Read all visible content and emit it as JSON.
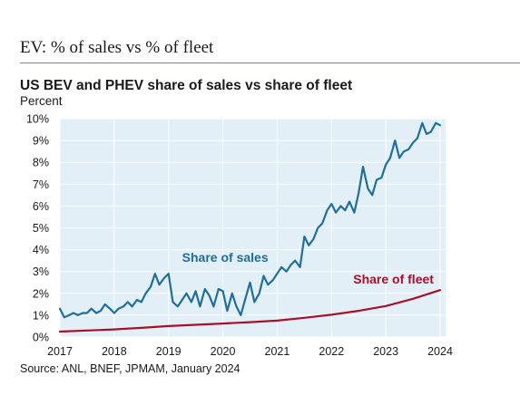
{
  "header": {
    "title": "EV: % of sales vs % of fleet"
  },
  "chart_data": {
    "type": "line",
    "title": "US BEV and PHEV share of sales vs share of fleet",
    "ylabel": "Percent",
    "source": "Source: ANL, BNEF, JPMAM, January 2024",
    "xlim": [
      2017,
      2024.1
    ],
    "ylim": [
      0,
      10
    ],
    "xticks": [
      "2017",
      "2018",
      "2019",
      "2020",
      "2021",
      "2022",
      "2023",
      "2024"
    ],
    "yticks": [
      "0%",
      "1%",
      "2%",
      "3%",
      "4%",
      "5%",
      "6%",
      "7%",
      "8%",
      "9%",
      "10%"
    ],
    "grid": true,
    "legend": "inline annotations",
    "colors": {
      "sales": "#1f6e9c",
      "fleet": "#a8102a",
      "plot_bg": "#e3eff6"
    },
    "series": [
      {
        "name": "Share of sales",
        "x": [
          2017.0,
          2017.08,
          2017.17,
          2017.25,
          2017.33,
          2017.42,
          2017.5,
          2017.58,
          2017.67,
          2017.75,
          2017.83,
          2017.92,
          2018.0,
          2018.08,
          2018.17,
          2018.25,
          2018.33,
          2018.42,
          2018.5,
          2018.58,
          2018.67,
          2018.75,
          2018.83,
          2018.92,
          2019.0,
          2019.08,
          2019.17,
          2019.25,
          2019.33,
          2019.42,
          2019.5,
          2019.58,
          2019.67,
          2019.75,
          2019.83,
          2019.92,
          2020.0,
          2020.08,
          2020.17,
          2020.25,
          2020.33,
          2020.42,
          2020.5,
          2020.58,
          2020.67,
          2020.75,
          2020.83,
          2020.92,
          2021.0,
          2021.08,
          2021.17,
          2021.25,
          2021.33,
          2021.42,
          2021.5,
          2021.58,
          2021.67,
          2021.75,
          2021.83,
          2021.92,
          2022.0,
          2022.08,
          2022.17,
          2022.25,
          2022.33,
          2022.42,
          2022.5,
          2022.58,
          2022.67,
          2022.75,
          2022.83,
          2022.92,
          2023.0,
          2023.08,
          2023.17,
          2023.25,
          2023.33,
          2023.42,
          2023.5,
          2023.58,
          2023.67,
          2023.75,
          2023.83,
          2023.92,
          2024.0
        ],
        "values": [
          1.3,
          0.9,
          1.0,
          1.1,
          1.0,
          1.1,
          1.1,
          1.3,
          1.1,
          1.2,
          1.5,
          1.3,
          1.1,
          1.3,
          1.4,
          1.6,
          1.4,
          1.7,
          1.6,
          2.0,
          2.3,
          2.9,
          2.4,
          2.7,
          2.9,
          1.6,
          1.4,
          1.7,
          2.0,
          1.6,
          2.1,
          1.4,
          2.2,
          1.9,
          1.4,
          2.2,
          2.1,
          1.2,
          2.0,
          1.4,
          1.0,
          1.8,
          2.5,
          1.6,
          2.0,
          2.8,
          2.4,
          2.6,
          2.9,
          3.2,
          3.0,
          3.3,
          3.5,
          3.2,
          4.6,
          4.2,
          4.5,
          5.0,
          5.2,
          5.8,
          6.1,
          5.7,
          6.0,
          5.8,
          6.2,
          5.7,
          6.6,
          7.8,
          6.8,
          6.5,
          7.2,
          7.3,
          7.9,
          8.2,
          9.0,
          8.2,
          8.5,
          8.6,
          8.9,
          9.1,
          9.8,
          9.3,
          9.4,
          9.8,
          9.7
        ]
      },
      {
        "name": "Share of fleet",
        "x": [
          2017,
          2017.5,
          2018,
          2018.5,
          2019,
          2019.5,
          2020,
          2020.5,
          2021,
          2021.5,
          2022,
          2022.5,
          2023,
          2023.5,
          2024
        ],
        "values": [
          0.25,
          0.3,
          0.35,
          0.42,
          0.5,
          0.56,
          0.62,
          0.68,
          0.75,
          0.88,
          1.02,
          1.2,
          1.42,
          1.75,
          2.15
        ]
      }
    ],
    "annotations": [
      {
        "text": "Share of sales",
        "series": 0,
        "x": 2019.25,
        "y": 3.45
      },
      {
        "text": "Share of fleet",
        "series": 1,
        "x": 2022.4,
        "y": 2.45
      }
    ]
  }
}
